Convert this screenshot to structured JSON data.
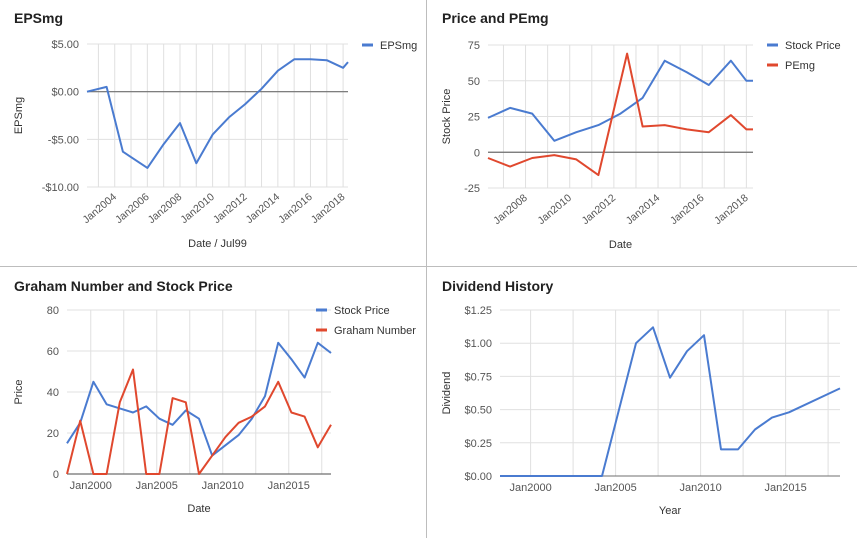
{
  "colors": {
    "blue": "#4a7bd0",
    "red": "#e0482e",
    "grid": "#e0e0e0",
    "zero": "#6f6f6f",
    "text": "#555555"
  },
  "chart_data": [
    {
      "id": "c1",
      "type": "line",
      "title": "EPSmg",
      "xlabel": "Date / Jul99",
      "ylabel": "EPSmg",
      "xlim": [
        2002.3,
        2018.3
      ],
      "ylim": [
        -10,
        5
      ],
      "xticks": [
        2004,
        2006,
        2008,
        2010,
        2012,
        2014,
        2016,
        2018
      ],
      "xtick_labels": [
        "Jan2004",
        "Jan2006",
        "Jan2008",
        "Jan2010",
        "Jan2012",
        "Jan2014",
        "Jan2016",
        "Jan2018"
      ],
      "xtick_rotated": true,
      "yticks": [
        5,
        0,
        -5,
        -10
      ],
      "ytick_labels": [
        "$5.00",
        "$0.00",
        "-$5.00",
        "-$10.00"
      ],
      "zero_line": 0,
      "legend_position": "right",
      "series": [
        {
          "name": "EPSmg",
          "color": "#4a7bd0",
          "x": [
            2002.3,
            2003.5,
            2004.5,
            2006.0,
            2007.0,
            2008.0,
            2009.0,
            2010.0,
            2011.0,
            2012.0,
            2013.0,
            2014.0,
            2015.0,
            2016.0,
            2017.0,
            2018.0,
            2018.3
          ],
          "y": [
            0.0,
            0.5,
            -6.3,
            -8.0,
            -5.5,
            -3.3,
            -7.5,
            -4.5,
            -2.7,
            -1.3,
            0.3,
            2.2,
            3.4,
            3.4,
            3.3,
            2.5,
            3.1
          ]
        }
      ]
    },
    {
      "id": "c2",
      "type": "line",
      "title": "Price and PEmg",
      "xlabel": "Date",
      "ylabel": "Stock Price",
      "xlim": [
        2006.3,
        2018.3
      ],
      "ylim": [
        -25,
        75
      ],
      "xticks": [
        2008,
        2010,
        2012,
        2014,
        2016,
        2018
      ],
      "xtick_labels": [
        "Jan2008",
        "Jan2010",
        "Jan2012",
        "Jan2014",
        "Jan2016",
        "Jan2018"
      ],
      "xtick_rotated": true,
      "yticks": [
        75,
        50,
        25,
        0,
        -25
      ],
      "ytick_labels": [
        "75",
        "50",
        "25",
        "0",
        "-25"
      ],
      "zero_line": 0,
      "legend_position": "right",
      "series": [
        {
          "name": "Stock Price",
          "color": "#4a7bd0",
          "x": [
            2006.3,
            2007.3,
            2008.3,
            2009.3,
            2010.3,
            2011.3,
            2012.3,
            2013.3,
            2014.3,
            2015.3,
            2016.3,
            2017.3,
            2018.0,
            2018.3
          ],
          "y": [
            24,
            31,
            27,
            8,
            14,
            19,
            27,
            38,
            64,
            56,
            47,
            64,
            50,
            50
          ]
        },
        {
          "name": "PEmg",
          "color": "#e0482e",
          "x": [
            2006.3,
            2007.3,
            2008.3,
            2009.3,
            2010.3,
            2011.3,
            2012.6,
            2013.3,
            2014.3,
            2015.3,
            2016.3,
            2017.3,
            2018.0,
            2018.3
          ],
          "y": [
            -4,
            -10,
            -4,
            -2,
            -5,
            -16,
            69,
            18,
            19,
            16,
            14,
            26,
            16,
            16
          ]
        }
      ]
    },
    {
      "id": "c3",
      "type": "line",
      "title": "Graham Number and Stock Price",
      "xlabel": "Date",
      "ylabel": "Price",
      "xlim": [
        1998.2,
        2018.2
      ],
      "ylim": [
        0,
        80
      ],
      "xticks": [
        2000,
        2005,
        2010,
        2015
      ],
      "xtick_labels": [
        "Jan2000",
        "Jan2005",
        "Jan2010",
        "Jan2015"
      ],
      "xtick_rotated": false,
      "yticks": [
        80,
        60,
        40,
        20,
        0
      ],
      "ytick_labels": [
        "80",
        "60",
        "40",
        "20",
        "0"
      ],
      "zero_line": 0,
      "legend_position": "right",
      "series": [
        {
          "name": "Stock Price",
          "color": "#4a7bd0",
          "x": [
            1998.2,
            1999.2,
            2000.2,
            2001.2,
            2002.2,
            2003.2,
            2004.2,
            2005.2,
            2006.2,
            2007.2,
            2008.2,
            2009.2,
            2010.2,
            2011.2,
            2012.2,
            2013.2,
            2014.2,
            2015.2,
            2016.2,
            2017.2,
            2018.2
          ],
          "y": [
            15,
            25,
            45,
            34,
            32,
            30,
            33,
            27,
            24,
            31,
            27,
            9,
            14,
            19,
            27,
            38,
            64,
            56,
            47,
            64,
            59
          ]
        },
        {
          "name": "Graham Number",
          "color": "#e0482e",
          "x": [
            1998.2,
            1999.2,
            2000.2,
            2001.2,
            2002.2,
            2003.2,
            2004.2,
            2005.2,
            2006.2,
            2007.2,
            2008.2,
            2009.2,
            2010.2,
            2011.2,
            2012.2,
            2013.2,
            2014.2,
            2015.2,
            2016.2,
            2017.2,
            2018.2
          ],
          "y": [
            0,
            26,
            0,
            0,
            35,
            51,
            0,
            0,
            37,
            35,
            0,
            9,
            18,
            25,
            28,
            33,
            45,
            30,
            28,
            13,
            24
          ]
        }
      ]
    },
    {
      "id": "c4",
      "type": "line",
      "title": "Dividend History",
      "xlabel": "Year",
      "ylabel": "Dividend",
      "xlim": [
        1998.2,
        2018.2
      ],
      "ylim": [
        0,
        1.25
      ],
      "xticks": [
        2000,
        2005,
        2010,
        2015
      ],
      "xtick_labels": [
        "Jan2000",
        "Jan2005",
        "Jan2010",
        "Jan2015"
      ],
      "xtick_rotated": false,
      "yticks": [
        1.25,
        1.0,
        0.75,
        0.5,
        0.25,
        0.0
      ],
      "ytick_labels": [
        "$1.25",
        "$1.00",
        "$0.75",
        "$0.50",
        "$0.25",
        "$0.00"
      ],
      "zero_line": null,
      "legend_position": "none",
      "series": [
        {
          "color": "#4a7bd0",
          "x": [
            1998.2,
            2003.2,
            2004.2,
            2005.2,
            2006.2,
            2007.2,
            2008.2,
            2009.2,
            2010.2,
            2011.2,
            2012.2,
            2013.2,
            2014.2,
            2015.2,
            2018.2
          ],
          "y": [
            0.0,
            0.0,
            0.0,
            0.5,
            1.0,
            1.12,
            0.74,
            0.94,
            1.06,
            0.2,
            0.2,
            0.35,
            0.44,
            0.48,
            0.66
          ]
        }
      ]
    }
  ]
}
